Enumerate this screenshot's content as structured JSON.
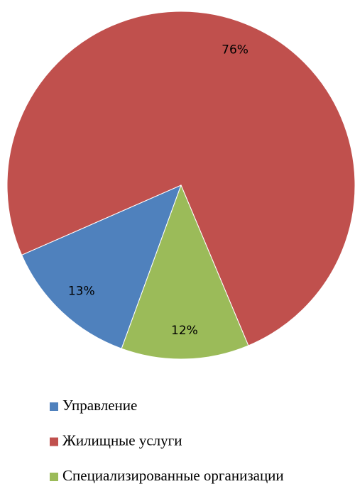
{
  "chart_data": {
    "type": "pie",
    "categories": [
      "Управление",
      "Жилищные услуги",
      "Специализированные организации"
    ],
    "values": [
      13,
      76,
      12
    ],
    "value_labels": [
      "13%",
      "76%",
      "12%"
    ],
    "colors": [
      "#4f81bd",
      "#c0504d",
      "#9bbb59"
    ],
    "legend": "bottom"
  }
}
